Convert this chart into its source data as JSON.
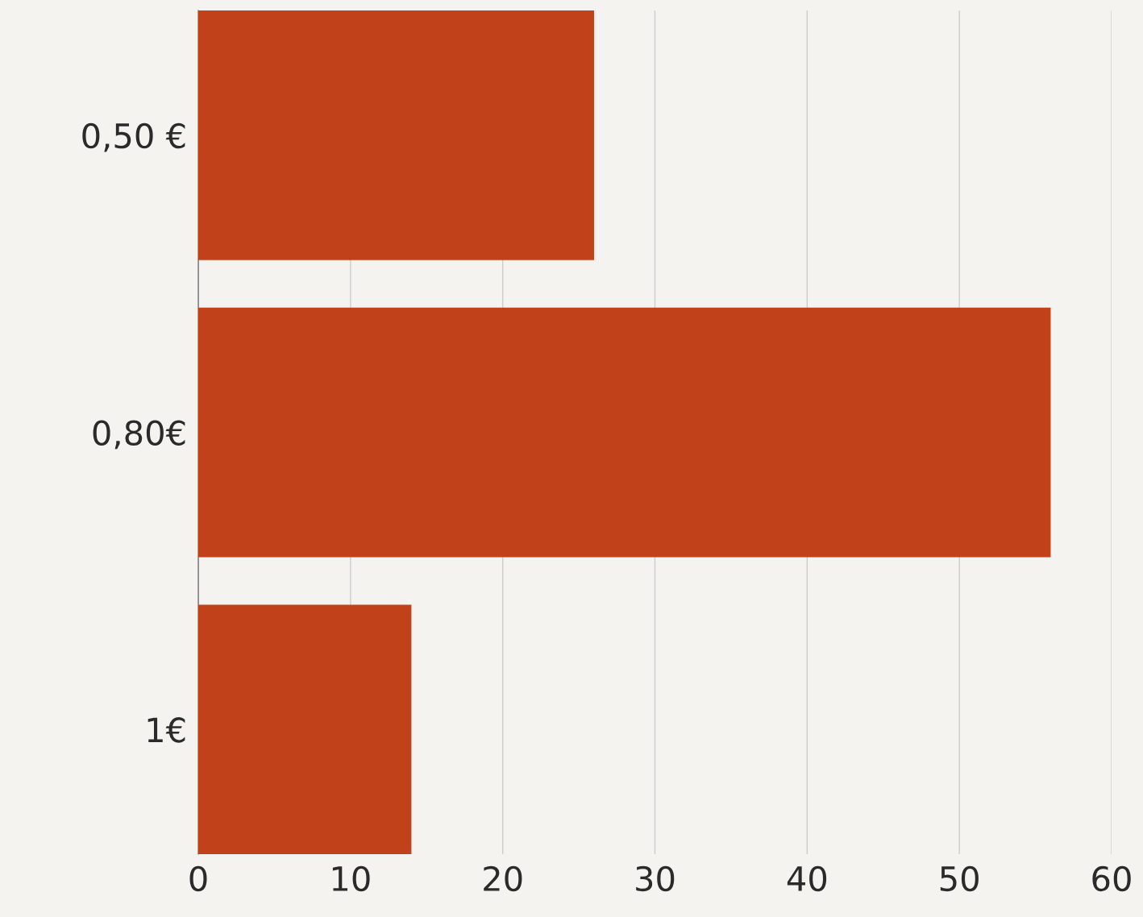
{
  "chart_data": {
    "type": "bar",
    "orientation": "horizontal",
    "categories": [
      "0,50 €",
      "0,80€",
      "1€"
    ],
    "values": [
      26,
      56,
      14
    ],
    "color": "#c1411a",
    "xlim": [
      0,
      60
    ],
    "xticks": [
      0,
      10,
      20,
      30,
      40,
      50,
      60
    ],
    "grid": "x",
    "legend": false
  }
}
